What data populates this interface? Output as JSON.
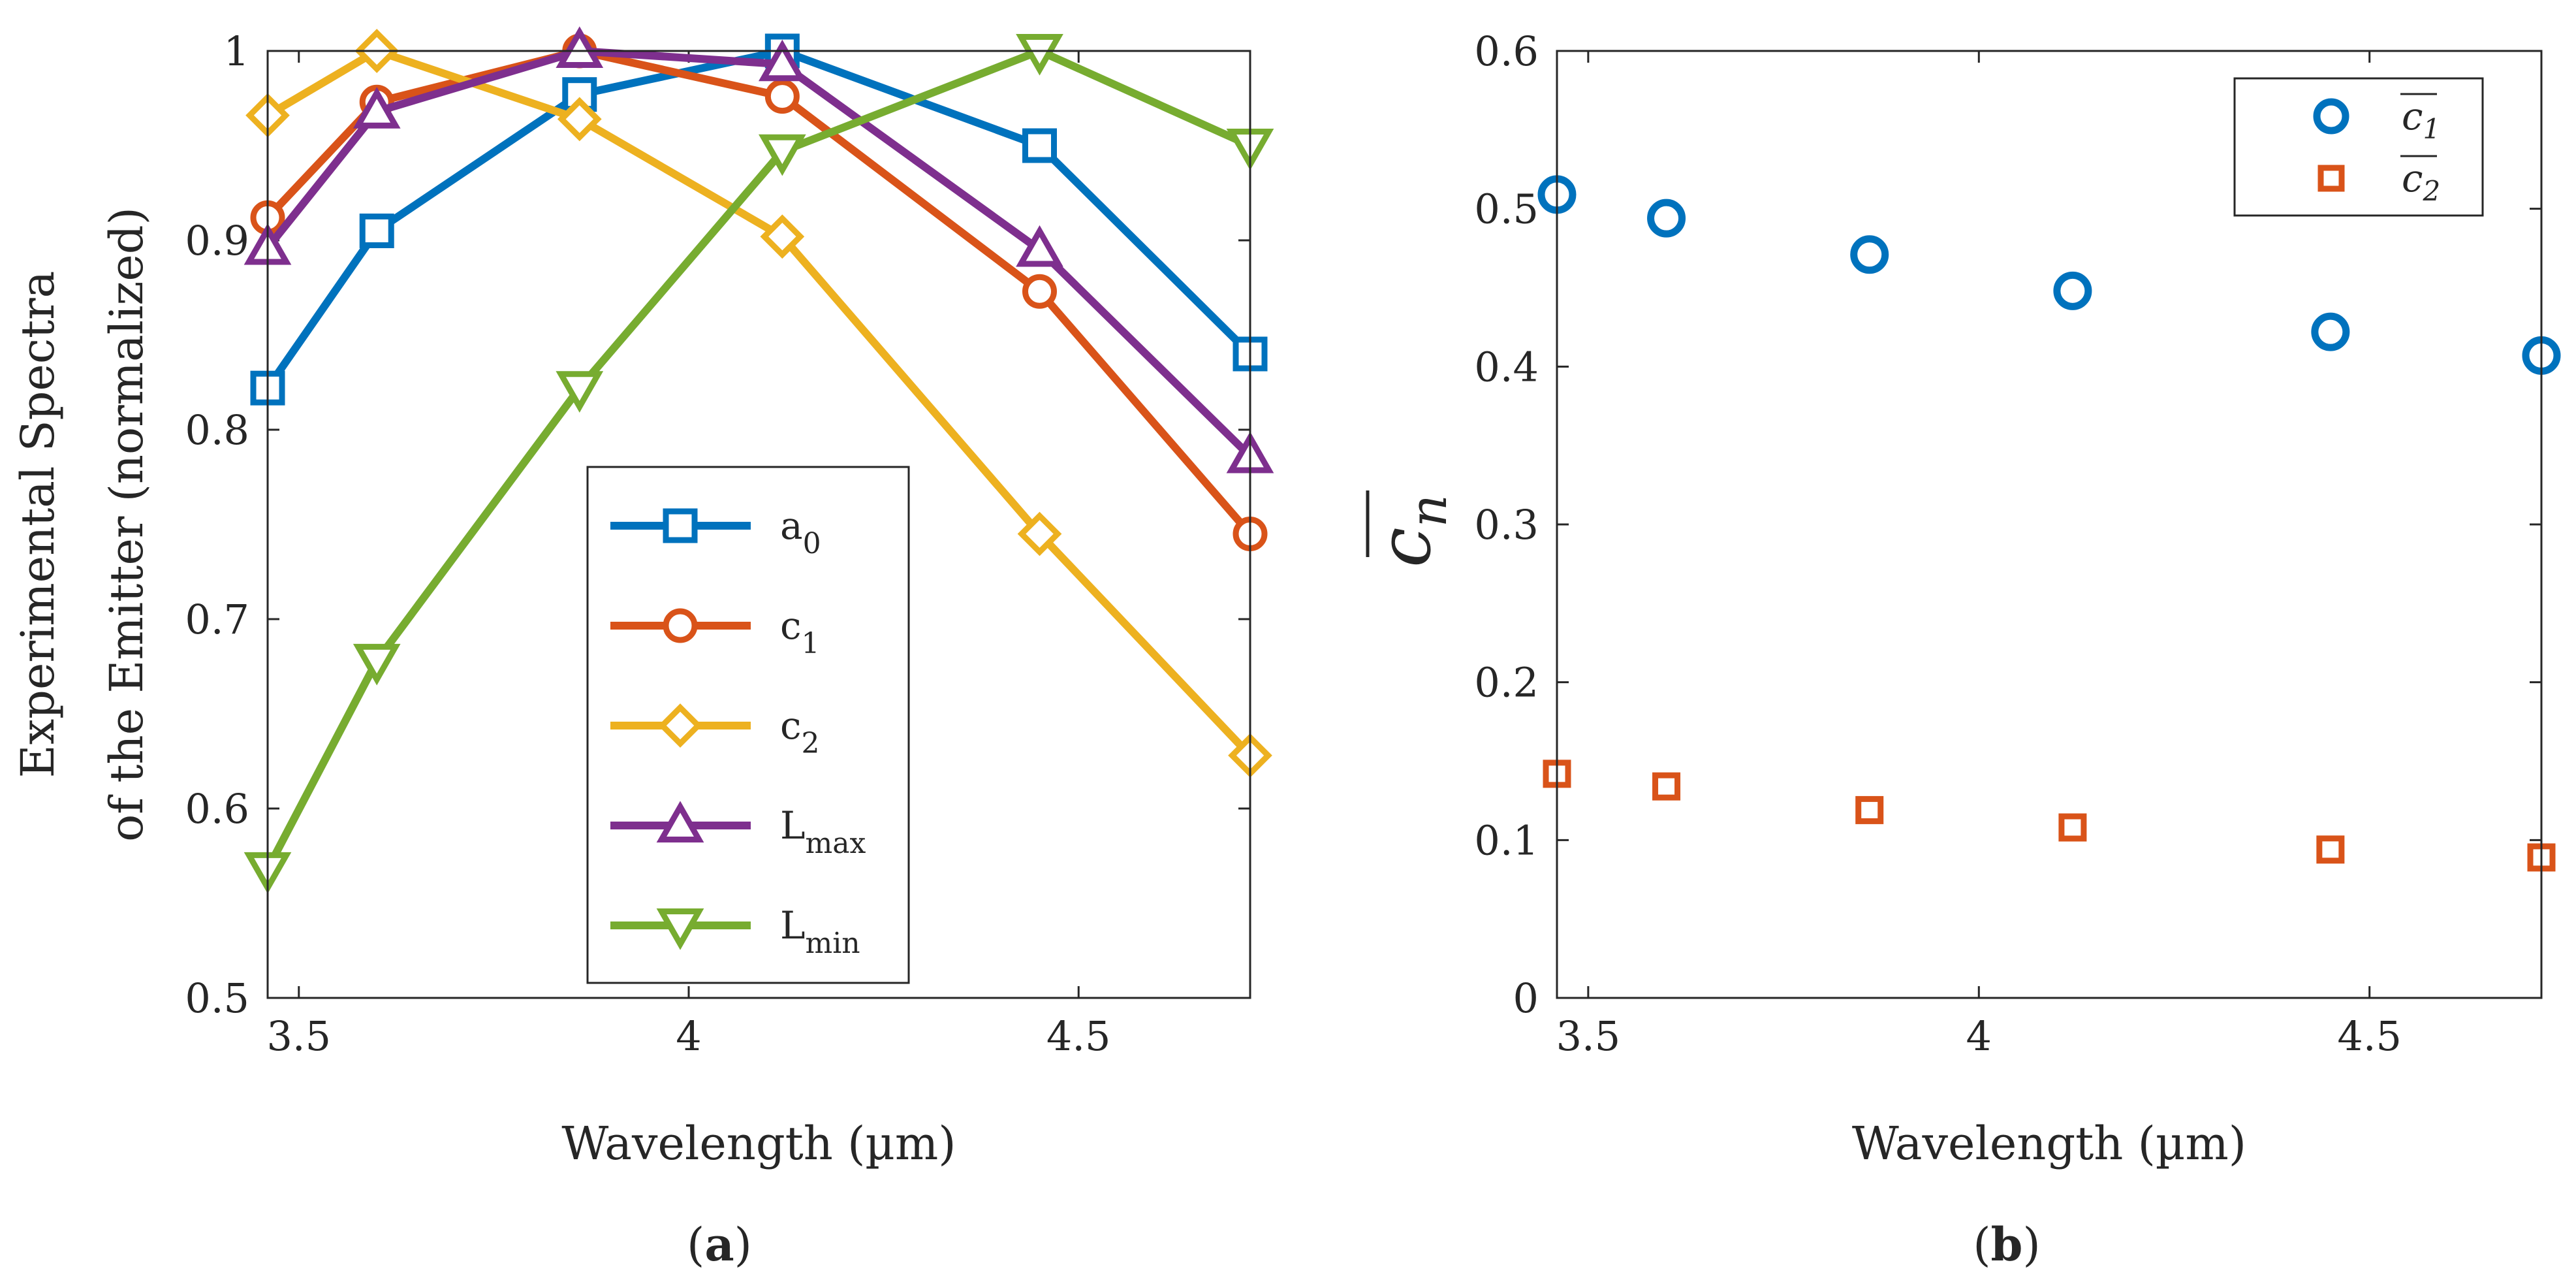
{
  "chart_data": [
    {
      "type": "line",
      "panel_label": "a",
      "xlabel": "Wavelength (µm)",
      "ylabel_line1": "Experimental Spectra",
      "ylabel_line2": "of the Emitter (normalized)",
      "xlim": [
        3.46,
        4.72
      ],
      "ylim": [
        0.5,
        1.0
      ],
      "xticks": [
        3.5,
        4,
        4.5
      ],
      "xtick_labels": [
        "3.5",
        "4",
        "4.5"
      ],
      "yticks": [
        0.5,
        0.6,
        0.7,
        0.8,
        0.9,
        1.0
      ],
      "ytick_labels": [
        "0.5",
        "0.6",
        "0.7",
        "0.8",
        "0.9",
        "1"
      ],
      "x": [
        3.46,
        3.6,
        3.86,
        4.12,
        4.45,
        4.72
      ],
      "legend_position": "bottom-center",
      "series": [
        {
          "name": "a",
          "sub": "0",
          "color": "#0072BD",
          "marker": "square",
          "values": [
            0.822,
            0.905,
            0.977,
            1.0,
            0.95,
            0.84
          ]
        },
        {
          "name": "c",
          "sub": "1",
          "color": "#D95319",
          "marker": "circle",
          "values": [
            0.912,
            0.973,
            1.0,
            0.976,
            0.873,
            0.745
          ]
        },
        {
          "name": "c",
          "sub": "2",
          "color": "#EDB120",
          "marker": "diamond",
          "values": [
            0.966,
            1.0,
            0.964,
            0.902,
            0.745,
            0.628
          ]
        },
        {
          "name": "L",
          "sub": "max",
          "color": "#7E2F8E",
          "marker": "triangle-up",
          "values": [
            0.896,
            0.968,
            1.0,
            0.993,
            0.895,
            0.786
          ]
        },
        {
          "name": "L",
          "sub": "min",
          "color": "#77AC30",
          "marker": "triangle-down",
          "values": [
            0.568,
            0.678,
            0.822,
            0.947,
            1.0,
            0.95
          ]
        }
      ]
    },
    {
      "type": "scatter",
      "panel_label": "b",
      "xlabel": "Wavelength (µm)",
      "ylabel": "c",
      "ylabel_sub": "n",
      "xlim": [
        3.46,
        4.72
      ],
      "ylim": [
        0,
        0.6
      ],
      "xticks": [
        3.5,
        4,
        4.5
      ],
      "xtick_labels": [
        "3.5",
        "4",
        "4.5"
      ],
      "yticks": [
        0,
        0.1,
        0.2,
        0.3,
        0.4,
        0.5,
        0.6
      ],
      "ytick_labels": [
        "0",
        "0.1",
        "0.2",
        "0.3",
        "0.4",
        "0.5",
        "0.6"
      ],
      "x": [
        3.46,
        3.6,
        3.86,
        4.12,
        4.45,
        4.72
      ],
      "legend_position": "top-right",
      "series": [
        {
          "name": "c",
          "sub": "1",
          "color": "#0072BD",
          "marker": "circle",
          "values": [
            0.509,
            0.494,
            0.471,
            0.448,
            0.422,
            0.407
          ]
        },
        {
          "name": "c",
          "sub": "2",
          "color": "#D95319",
          "marker": "square",
          "values": [
            0.142,
            0.134,
            0.119,
            0.108,
            0.094,
            0.089
          ]
        }
      ]
    }
  ],
  "captions": {
    "a": "a",
    "b": "b"
  }
}
